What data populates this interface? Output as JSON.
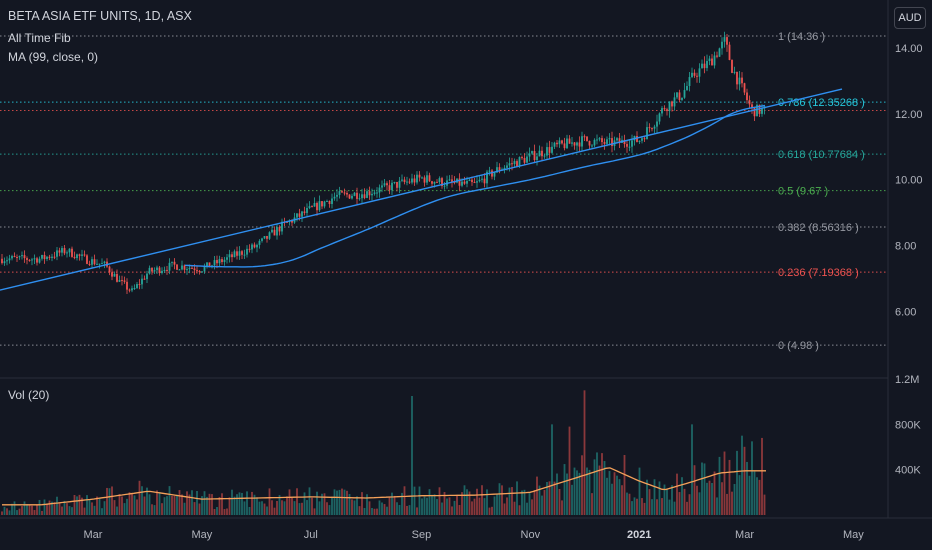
{
  "header": {
    "title": "BETA ASIA ETF UNITS, 1D, ASX",
    "indicator1": "All Time Fib",
    "indicator2": "MA (99, close, 0)",
    "currency": "AUD",
    "volume_label": "Vol (20)"
  },
  "colors": {
    "background": "#131722",
    "up": "#26a69a",
    "down": "#ef5350",
    "ma": "#2f8ff0",
    "trendline": "#2f8ff0",
    "volume_ma": "#f5a15a",
    "fib_grey": "#9598a1",
    "fib_cyan": "#26c6da",
    "fib_green": "#4caf50",
    "fib_red": "#ef5350"
  },
  "chart_data": [
    {
      "type": "candlestick",
      "title": "BETA ASIA ETF UNITS, 1D, ASX",
      "y_axis": {
        "ticks": [
          "6.00",
          "8.00",
          "10.00",
          "12.00",
          "14.00"
        ],
        "ylim": [
          3.9,
          15.1
        ]
      },
      "x_axis": {
        "ticks": [
          "Mar",
          "May",
          "Jul",
          "Sep",
          "Nov",
          "2021",
          "Mar",
          "May"
        ]
      },
      "price_path": [
        [
          "Feb 1",
          7.6
        ],
        [
          "Feb 15",
          7.85
        ],
        [
          "Feb 25",
          7.6
        ],
        [
          "Mar 8",
          7.4
        ],
        [
          "Mar 16",
          6.9
        ],
        [
          "Mar 23",
          6.6
        ],
        [
          "Apr 1",
          7.2
        ],
        [
          "Apr 15",
          7.4
        ],
        [
          "May 1",
          7.3
        ],
        [
          "May 15",
          7.6
        ],
        [
          "Jun 1",
          8.0
        ],
        [
          "Jun 15",
          8.6
        ],
        [
          "Jul 1",
          9.1
        ],
        [
          "Jul 15",
          9.5
        ],
        [
          "Aug 1",
          9.6
        ],
        [
          "Aug 15",
          9.8
        ],
        [
          "Sep 1",
          10.05
        ],
        [
          "Sep 15",
          9.9
        ],
        [
          "Oct 1",
          9.85
        ],
        [
          "Oct 15",
          10.35
        ],
        [
          "Nov 1",
          10.7
        ],
        [
          "Nov 15",
          11.0
        ],
        [
          "Dec 1",
          11.2
        ],
        [
          "Dec 15",
          11.1
        ],
        [
          "Jan 1",
          11.2
        ],
        [
          "Jan 10",
          11.8
        ],
        [
          "Jan 15",
          12.2
        ],
        [
          "Jan 25",
          12.6
        ],
        [
          "Feb 1",
          13.2
        ],
        [
          "Feb 10",
          13.6
        ],
        [
          "Feb 18",
          14.2
        ],
        [
          "Feb 22",
          13.4
        ],
        [
          "Mar 1",
          12.6
        ],
        [
          "Mar 5",
          12.1
        ]
      ],
      "fib_levels": [
        {
          "ratio": "1",
          "label": "1 (14.36 )",
          "value": 14.36,
          "color": "#9598a1"
        },
        {
          "ratio": "0.786",
          "label": "0.786 (12.35268 )",
          "value": 12.35268,
          "color": "#26c6da"
        },
        {
          "ratio": "0.618",
          "label": "0.618 (10.77684 )",
          "value": 10.77684,
          "color": "#26a69a"
        },
        {
          "ratio": "0.5",
          "label": "0.5 (9.67 )",
          "value": 9.67,
          "color": "#4caf50"
        },
        {
          "ratio": "0.382",
          "label": "0.382 (8.56316 )",
          "value": 8.56316,
          "color": "#9598a1"
        },
        {
          "ratio": "0.236",
          "label": "0.236 (7.19368 )",
          "value": 7.19368,
          "color": "#ef5350"
        },
        {
          "ratio": "0",
          "label": "0 (4.98 )",
          "value": 4.98,
          "color": "#9598a1"
        }
      ],
      "last_price": 12.1,
      "moving_average": {
        "name": "MA (99, close, 0)",
        "period": 99
      },
      "trendline": {
        "from": [
          "Feb 1",
          6.65
        ],
        "to": [
          "Apr 2021",
          12.75
        ]
      }
    },
    {
      "type": "bar",
      "title": "Vol (20)",
      "y_axis": {
        "ticks": [
          "400K",
          "800K",
          "1.2M"
        ],
        "ylim": [
          0,
          1200000
        ]
      },
      "volume_ma_path": [
        [
          "Feb 1",
          90000
        ],
        [
          "Mar 1",
          140000
        ],
        [
          "Apr 1",
          210000
        ],
        [
          "May 1",
          140000
        ],
        [
          "Jun 1",
          150000
        ],
        [
          "Jul 1",
          160000
        ],
        [
          "Aug 1",
          150000
        ],
        [
          "Sep 1",
          170000
        ],
        [
          "Oct 1",
          175000
        ],
        [
          "Nov 1",
          200000
        ],
        [
          "Dec 1",
          350000
        ],
        [
          "Dec 15",
          420000
        ],
        [
          "Jan 1",
          300000
        ],
        [
          "Jan 15",
          220000
        ],
        [
          "Feb 1",
          300000
        ],
        [
          "Feb 15",
          370000
        ],
        [
          "Mar 1",
          390000
        ]
      ],
      "notable_peaks": [
        {
          "date": "Oct 15",
          "value": 1050000
        },
        {
          "date": "Nov 10",
          "value": 800000
        },
        {
          "date": "Nov 20",
          "value": 780000
        },
        {
          "date": "Dec 5",
          "value": 1100000
        },
        {
          "date": "Feb 2021",
          "value": 800000
        },
        {
          "date": "Mar 2021",
          "value": 700000
        }
      ]
    }
  ]
}
